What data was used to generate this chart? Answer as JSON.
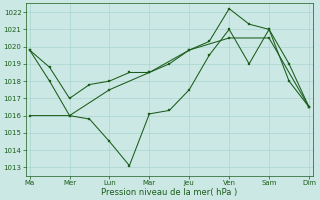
{
  "xlabel": "Pression niveau de la mer( hPa )",
  "background_color": "#cce8e4",
  "grid_color": "#aad4d0",
  "line_color": "#1a5c1a",
  "ylim": [
    1012.5,
    1022.5
  ],
  "yticks": [
    1013,
    1014,
    1015,
    1016,
    1017,
    1018,
    1019,
    1020,
    1021,
    1022
  ],
  "day_labels": [
    "Ma",
    "Mer",
    "Lun",
    "Mar",
    "Jeu",
    "Ven",
    "Sam",
    "Dim"
  ],
  "day_positions": [
    0,
    1,
    2,
    3,
    4,
    5,
    6,
    7
  ],
  "xlim": [
    -0.1,
    7.1
  ],
  "series1_x": [
    0,
    1,
    2,
    3,
    4,
    5,
    6,
    7
  ],
  "series1_y": [
    1016.0,
    1016.0,
    1017.5,
    1018.5,
    1019.8,
    1020.5,
    1020.5,
    1016.5
  ],
  "series2_x": [
    0,
    0.5,
    1,
    1.5,
    2,
    2.5,
    3,
    3.5,
    4,
    4.5,
    5,
    5.5,
    6,
    6.5,
    7
  ],
  "series2_y": [
    1019.8,
    1018.8,
    1017.0,
    1017.8,
    1018.0,
    1018.5,
    1018.5,
    1019.0,
    1019.8,
    1020.3,
    1022.2,
    1021.3,
    1021.0,
    1019.0,
    1016.5
  ],
  "series3_x": [
    0,
    0.5,
    1,
    1.5,
    2,
    2.5,
    3,
    3.5,
    4,
    4.5,
    5,
    5.5,
    6,
    6.5,
    7
  ],
  "series3_y": [
    1019.8,
    1018.0,
    1016.0,
    1015.8,
    1014.5,
    1013.1,
    1016.1,
    1016.3,
    1017.5,
    1019.5,
    1021.0,
    1019.0,
    1021.0,
    1018.0,
    1016.5
  ]
}
